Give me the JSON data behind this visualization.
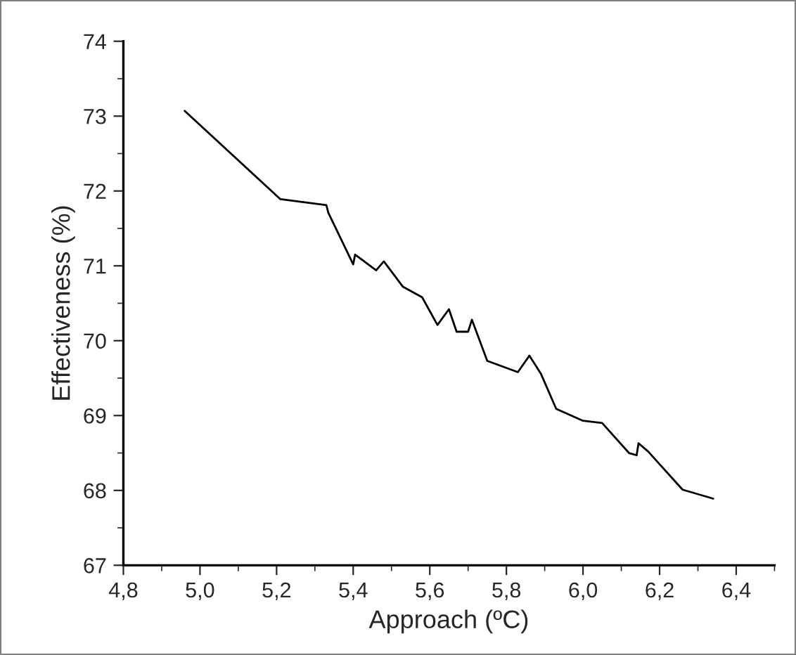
{
  "chart_data": {
    "type": "line",
    "xlabel": "Approach (ºC)",
    "ylabel": "Effectiveness (%)",
    "x": [
      4.96,
      5.21,
      5.33,
      5.335,
      5.4,
      5.405,
      5.46,
      5.48,
      5.53,
      5.58,
      5.62,
      5.65,
      5.67,
      5.7,
      5.71,
      5.75,
      5.83,
      5.86,
      5.89,
      5.93,
      6.0,
      6.05,
      6.12,
      6.14,
      6.145,
      6.17,
      6.26,
      6.34
    ],
    "series": [
      {
        "color": "#000000",
        "values": [
          73.07,
          71.89,
          71.81,
          71.71,
          71.02,
          71.15,
          70.94,
          71.06,
          70.72,
          70.58,
          70.21,
          70.42,
          70.12,
          70.12,
          70.28,
          69.73,
          69.58,
          69.8,
          69.56,
          69.09,
          68.93,
          68.9,
          68.5,
          68.47,
          68.63,
          68.52,
          68.01,
          67.89
        ]
      }
    ],
    "xlim": [
      4.8,
      6.5
    ],
    "ylim": [
      67,
      74
    ],
    "xticks": [
      {
        "value": 4.8,
        "label": "4,8"
      },
      {
        "value": 5.0,
        "label": "5,0"
      },
      {
        "value": 5.2,
        "label": "5,2"
      },
      {
        "value": 5.4,
        "label": "5,4"
      },
      {
        "value": 5.6,
        "label": "5,6"
      },
      {
        "value": 5.8,
        "label": "5,8"
      },
      {
        "value": 6.0,
        "label": "6,0"
      },
      {
        "value": 6.2,
        "label": "6,2"
      },
      {
        "value": 6.4,
        "label": "6,4"
      }
    ],
    "yticks": [
      67,
      68,
      69,
      70,
      71,
      72,
      73,
      74
    ],
    "grid": false,
    "legend": false,
    "marker": "none",
    "line_style": "solid"
  }
}
